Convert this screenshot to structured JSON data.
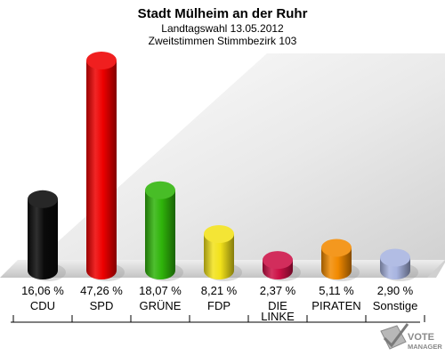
{
  "chart_data": {
    "type": "bar",
    "title": "Stadt Mülheim an der Ruhr",
    "subtitle_lines": [
      "Landtagswahl 13.05.2012",
      "Zweitstimmen Stimmbezirk 103"
    ],
    "categories": [
      [
        "CDU"
      ],
      [
        "SPD"
      ],
      [
        "GRÜNE"
      ],
      [
        "FDP"
      ],
      [
        "DIE",
        "LINKE"
      ],
      [
        "PIRATEN"
      ],
      [
        "Sonstige"
      ]
    ],
    "values": [
      16.06,
      47.26,
      18.07,
      8.21,
      2.37,
      5.11,
      2.9
    ],
    "value_labels": [
      "16,06 %",
      "47,26 %",
      "18,07 %",
      "8,21 %",
      "2,37 %",
      "5,11 %",
      "2,90 %"
    ],
    "colors": [
      "#0a0a0a",
      "#ee0000",
      "#2fb40a",
      "#f2e21a",
      "#cc1046",
      "#f28a00",
      "#a8b4e0"
    ],
    "grid": false,
    "legend": "none"
  },
  "logo": {
    "line1": "VOTE",
    "line2": "MANAGER"
  }
}
